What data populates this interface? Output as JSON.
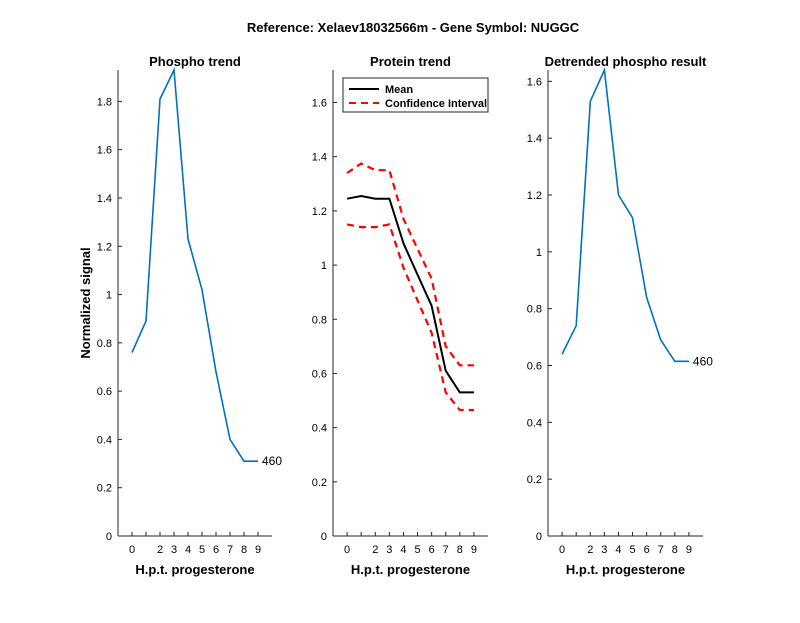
{
  "figure": {
    "title": "Reference:  Xelaev18032566m - Gene Symbol:  NUGGC"
  },
  "chart_data": [
    {
      "type": "line",
      "title": "Phospho trend",
      "xlabel": "H.p.t. progesterone",
      "ylabel": "Normalized signal",
      "x": [
        0,
        1,
        2,
        3,
        4,
        5,
        6,
        7,
        8,
        9
      ],
      "xticks": [
        "0",
        "2",
        "3",
        "4",
        "5",
        "6",
        "7",
        "8",
        "9"
      ],
      "ylim": [
        0,
        1.93
      ],
      "yticks": [
        0,
        0.2,
        0.4,
        0.6,
        0.8,
        1,
        1.2,
        1.4,
        1.6,
        1.8
      ],
      "series": [
        {
          "values": [
            0.76,
            0.89,
            1.81,
            1.93,
            1.23,
            1.02,
            0.68,
            0.4,
            0.31,
            0.31
          ],
          "color": "#0072BD"
        }
      ],
      "annotations": [
        {
          "text": "460",
          "x": 9,
          "y": 0.31
        }
      ],
      "grid": false
    },
    {
      "type": "line",
      "title": "Protein trend",
      "xlabel": "H.p.t. progesterone",
      "ylabel": "",
      "x": [
        0,
        1,
        2,
        3,
        4,
        5,
        6,
        7,
        8,
        9
      ],
      "xticks": [
        "0",
        "2",
        "3",
        "4",
        "5",
        "6",
        "7",
        "8",
        "9"
      ],
      "ylim": [
        0,
        1.72
      ],
      "yticks": [
        0,
        0.2,
        0.4,
        0.6,
        0.8,
        1,
        1.2,
        1.4,
        1.6
      ],
      "series": [
        {
          "name": "Mean",
          "values": [
            1.245,
            1.255,
            1.245,
            1.245,
            1.08,
            0.965,
            0.85,
            0.61,
            0.53,
            0.53
          ],
          "color": "#000000",
          "style": "solid"
        },
        {
          "name": "Confidence Interval",
          "values": [
            1.34,
            1.375,
            1.35,
            1.35,
            1.17,
            1.06,
            0.95,
            0.7,
            0.63,
            0.63
          ],
          "color": "#FF0000",
          "style": "dashed"
        },
        {
          "name": "Confidence Interval",
          "values": [
            1.15,
            1.14,
            1.14,
            1.15,
            0.99,
            0.87,
            0.75,
            0.53,
            0.465,
            0.465
          ],
          "color": "#FF0000",
          "style": "dashed",
          "legend": false
        }
      ],
      "legend": {
        "placement": "top-left",
        "entries": [
          "Mean",
          "Confidence Interval"
        ]
      },
      "grid": false
    },
    {
      "type": "line",
      "title": "Detrended phospho result",
      "xlabel": "H.p.t. progesterone",
      "ylabel": "",
      "x": [
        0,
        1,
        2,
        3,
        4,
        5,
        6,
        7,
        8,
        9
      ],
      "xticks": [
        "0",
        "2",
        "3",
        "4",
        "5",
        "6",
        "7",
        "8",
        "9"
      ],
      "ylim": [
        0,
        1.64
      ],
      "yticks": [
        0,
        0.2,
        0.4,
        0.6,
        0.8,
        1,
        1.2,
        1.4,
        1.6
      ],
      "series": [
        {
          "values": [
            0.64,
            0.74,
            1.53,
            1.64,
            1.2,
            1.12,
            0.84,
            0.69,
            0.615,
            0.615
          ],
          "color": "#0072BD"
        }
      ],
      "annotations": [
        {
          "text": "460",
          "x": 9,
          "y": 0.615
        }
      ],
      "grid": false
    }
  ]
}
